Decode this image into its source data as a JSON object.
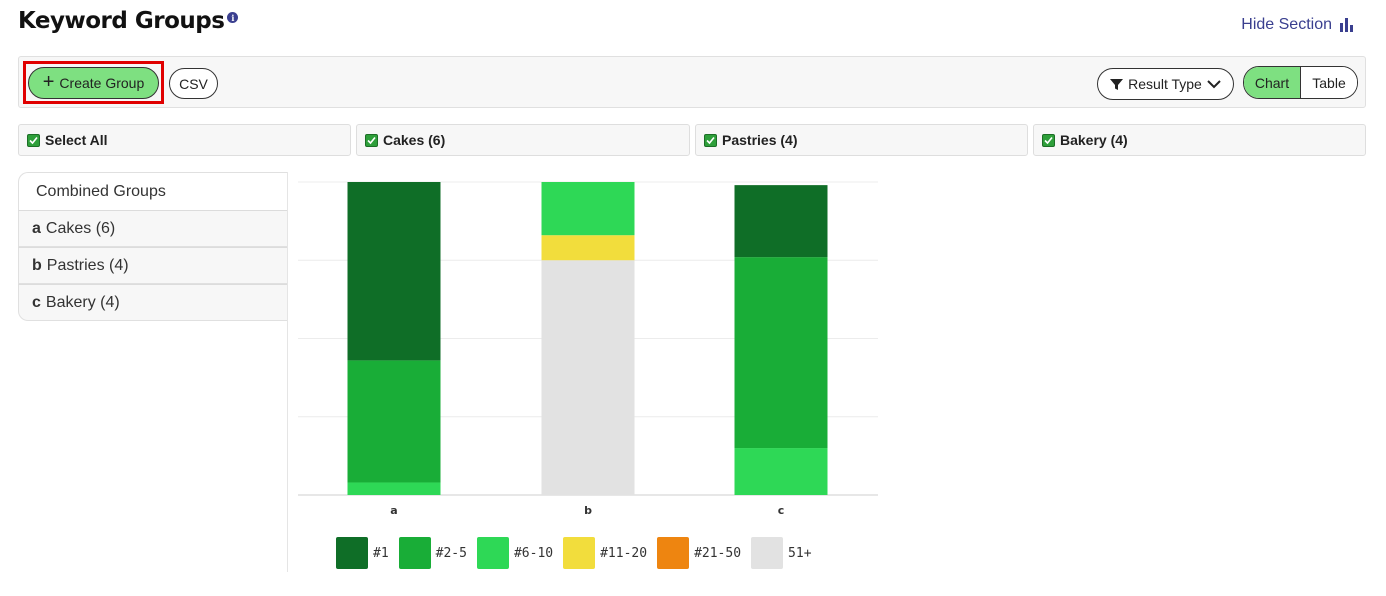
{
  "header": {
    "title": "Keyword Groups",
    "info_icon": "i",
    "hide_label": "Hide Section"
  },
  "toolbar": {
    "create_label": "Create Group",
    "csv_label": "CSV",
    "result_type_label": "Result Type",
    "chart_label": "Chart",
    "table_label": "Table"
  },
  "filters": [
    {
      "label": "Select All"
    },
    {
      "label": "Cakes (6)"
    },
    {
      "label": "Pastries (4)"
    },
    {
      "label": "Bakery (4)"
    }
  ],
  "groups": {
    "header": "Combined Groups",
    "items": [
      {
        "letter": "a",
        "label": "Cakes (6)"
      },
      {
        "letter": "b",
        "label": "Pastries (4)"
      },
      {
        "letter": "c",
        "label": "Bakery (4)"
      }
    ]
  },
  "chart_data": {
    "type": "bar",
    "stacked": true,
    "categories": [
      "a",
      "b",
      "c"
    ],
    "ylim": [
      0,
      100
    ],
    "series": [
      {
        "name": "#1",
        "color": "#0f6e27",
        "values": [
          57,
          0,
          23
        ]
      },
      {
        "name": "#2-5",
        "color": "#19ad37",
        "values": [
          39,
          0,
          61
        ]
      },
      {
        "name": "#6-10",
        "color": "#2ed856",
        "values": [
          4,
          17,
          15
        ]
      },
      {
        "name": "#11-20",
        "color": "#f2dd3c",
        "values": [
          0,
          8,
          0
        ]
      },
      {
        "name": "#21-50",
        "color": "#ee8510",
        "values": [
          0,
          0,
          0
        ]
      },
      {
        "name": "51+",
        "color": "#e2e2e2",
        "values": [
          0,
          75,
          0
        ]
      }
    ]
  },
  "colors": {
    "accent_green": "#7ee081",
    "highlight_red": "#e00000",
    "link_blue": "#3a3f8f"
  }
}
